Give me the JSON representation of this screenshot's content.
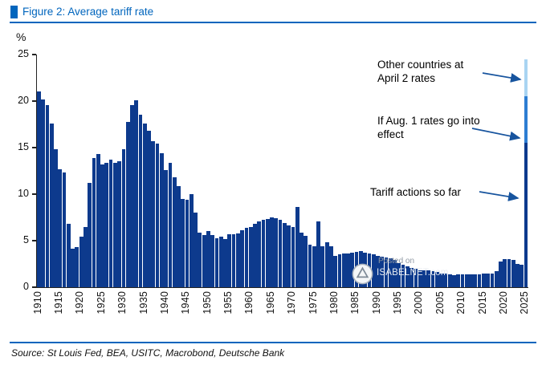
{
  "colors": {
    "accent_blue": "#0065bd",
    "bar": "#0d3a8d",
    "seg_mid": "#2d7dd2",
    "seg_light": "#a9d4f2",
    "arrow": "#17549e"
  },
  "watermark": {
    "line1": "Posted on",
    "line2": "ISABELNET.com"
  },
  "source": {
    "text": "Source: St Louis Fed, BEA, USITC, Macrobond, Deutsche Bank"
  },
  "chart_data": {
    "type": "bar",
    "title": "Figure 2: Average tariff rate",
    "ylabel": "%",
    "xlabel": "",
    "ylim": [
      0,
      25
    ],
    "yticks": [
      0,
      5,
      10,
      15,
      20,
      25
    ],
    "grid": false,
    "legend": false,
    "start_year": 1910,
    "x_tick_years": [
      1910,
      1915,
      1920,
      1925,
      1930,
      1935,
      1940,
      1945,
      1950,
      1955,
      1960,
      1965,
      1970,
      1975,
      1980,
      1985,
      1990,
      1995,
      2000,
      2005,
      2010,
      2015,
      2020,
      2025
    ],
    "series_label": "Average tariff rate",
    "values": [
      21.0,
      20.2,
      19.6,
      17.6,
      14.8,
      12.7,
      12.3,
      6.8,
      4.1,
      4.3,
      5.4,
      6.5,
      11.2,
      13.9,
      14.3,
      13.2,
      13.4,
      13.7,
      13.4,
      13.5,
      14.8,
      17.8,
      19.6,
      20.1,
      18.5,
      17.6,
      16.8,
      15.7,
      15.4,
      14.4,
      12.6,
      13.4,
      11.8,
      10.9,
      9.5,
      9.4,
      10.0,
      8.0,
      5.9,
      5.6,
      6.0,
      5.6,
      5.3,
      5.4,
      5.2,
      5.7,
      5.7,
      5.8,
      6.1,
      6.4,
      6.5,
      6.8,
      7.1,
      7.2,
      7.3,
      7.5,
      7.4,
      7.2,
      6.9,
      6.6,
      6.5,
      8.6,
      5.9,
      5.5,
      4.6,
      4.4,
      7.1,
      4.4,
      4.8,
      4.4,
      3.4,
      3.5,
      3.6,
      3.6,
      3.7,
      3.8,
      3.9,
      3.7,
      3.6,
      3.5,
      3.4,
      3.3,
      3.2,
      3.1,
      2.9,
      2.6,
      2.4,
      2.2,
      2.1,
      2.0,
      1.8,
      1.8,
      1.8,
      1.7,
      1.6,
      1.5,
      1.5,
      1.4,
      1.3,
      1.4,
      1.4,
      1.4,
      1.4,
      1.4,
      1.4,
      1.5,
      1.5,
      1.5,
      1.7,
      2.8,
      3.0,
      3.0,
      2.9,
      2.5,
      2.4
    ],
    "final_bar": {
      "year": 2025,
      "segments": [
        {
          "label": "Tariff actions so far",
          "value": 15.5
        },
        {
          "label": "If Aug. 1 rates go into effect",
          "value": 5.0
        },
        {
          "label": "Other countries at April 2 rates",
          "value": 4.0
        }
      ]
    },
    "annotations": [
      {
        "text": "Other countries at April 2 rates"
      },
      {
        "text": "If Aug. 1 rates go into effect"
      },
      {
        "text": "Tariff actions so far"
      }
    ]
  }
}
